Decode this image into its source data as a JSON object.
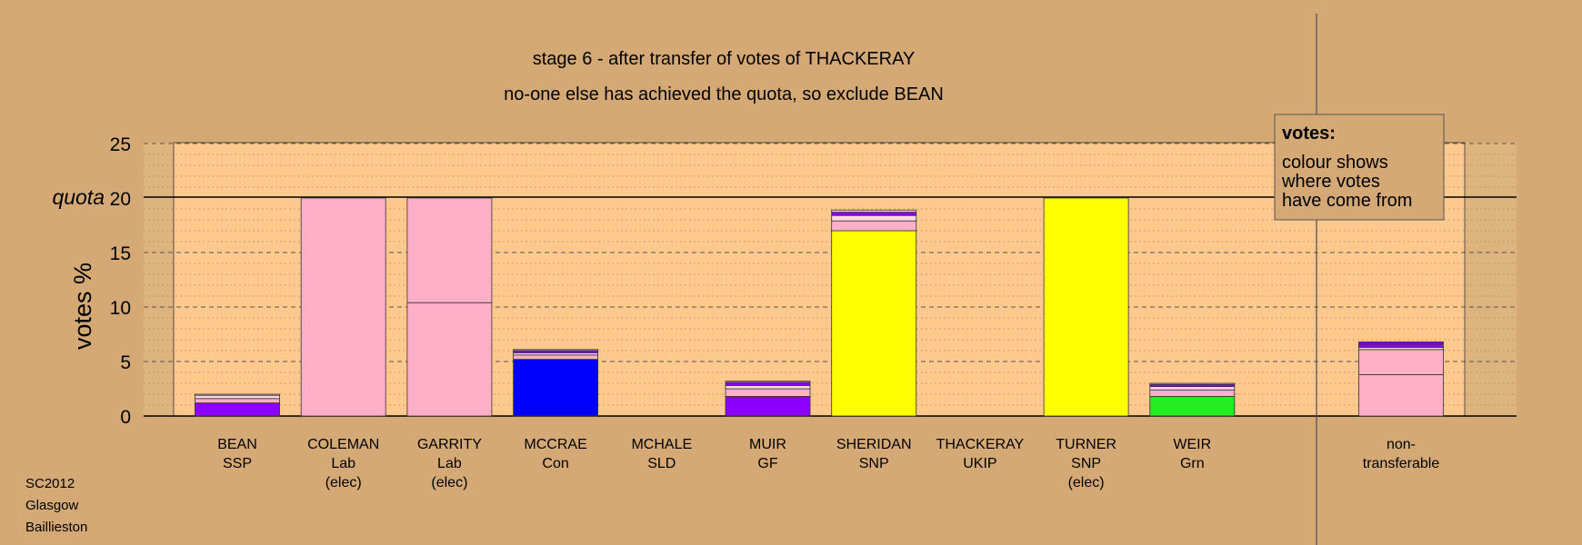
{
  "chart_data": {
    "type": "bar",
    "stacked": true,
    "title": "stage 6 - after transfer of votes of THACKERAY",
    "subtitle": "no-one else has achieved the quota, so exclude BEAN",
    "ylabel": "votes %",
    "ylim": [
      0,
      25
    ],
    "yticks": [
      0,
      5,
      10,
      15,
      20,
      25
    ],
    "quota": 20,
    "quota_label": "quota",
    "grid": true,
    "legend": {
      "position": "top-right",
      "title": "votes:",
      "lines": [
        "colour shows",
        "where votes",
        "have come from"
      ]
    },
    "candidates": [
      {
        "name": "BEAN",
        "party": "SSP",
        "status": "",
        "segments": [
          {
            "value": 1.2,
            "color": "#8B00FF"
          },
          {
            "value": 0.4,
            "color": "#FFB0C8"
          },
          {
            "value": 0.3,
            "color": "#FFD8E4"
          },
          {
            "value": 0.1,
            "color": "#FFC8D8"
          }
        ]
      },
      {
        "name": "COLEMAN",
        "party": "Lab",
        "status": "(elec)",
        "segments": [
          {
            "value": 20.0,
            "color": "#FFB0C8"
          }
        ]
      },
      {
        "name": "GARRITY",
        "party": "Lab",
        "status": "(elec)",
        "segments": [
          {
            "value": 10.4,
            "color": "#FFB0C8"
          },
          {
            "value": 9.6,
            "color": "#FFB0C8"
          }
        ]
      },
      {
        "name": "MCCRAE",
        "party": "Con",
        "status": "",
        "segments": [
          {
            "value": 5.2,
            "color": "#0000FF"
          },
          {
            "value": 0.4,
            "color": "#FFB0C8"
          },
          {
            "value": 0.2,
            "color": "#FFD8E4"
          },
          {
            "value": 0.2,
            "color": "#8B00FF"
          },
          {
            "value": 0.1,
            "color": "#FFC8D8"
          }
        ]
      },
      {
        "name": "MCHALE",
        "party": "SLD",
        "status": "",
        "segments": []
      },
      {
        "name": "MUIR",
        "party": "GF",
        "status": "",
        "segments": [
          {
            "value": 1.8,
            "color": "#8B00FF"
          },
          {
            "value": 0.7,
            "color": "#FFB0C8"
          },
          {
            "value": 0.3,
            "color": "#FFD8E4"
          },
          {
            "value": 0.3,
            "color": "#8B00FF"
          },
          {
            "value": 0.1,
            "color": "#FFC8D8"
          }
        ]
      },
      {
        "name": "SHERIDAN",
        "party": "SNP",
        "status": "",
        "segments": [
          {
            "value": 17.0,
            "color": "#FFFF00"
          },
          {
            "value": 0.9,
            "color": "#FFB0C8"
          },
          {
            "value": 0.5,
            "color": "#FFD8E4"
          },
          {
            "value": 0.3,
            "color": "#8B00FF"
          },
          {
            "value": 0.2,
            "color": "#FFC8D8"
          }
        ]
      },
      {
        "name": "THACKERAY",
        "party": "UKIP",
        "status": "",
        "segments": []
      },
      {
        "name": "TURNER",
        "party": "SNP",
        "status": "(elec)",
        "segments": [
          {
            "value": 20.0,
            "color": "#FFFF00"
          }
        ]
      },
      {
        "name": "WEIR",
        "party": "Grn",
        "status": "",
        "segments": [
          {
            "value": 1.8,
            "color": "#22EE22"
          },
          {
            "value": 0.6,
            "color": "#FFB0C8"
          },
          {
            "value": 0.3,
            "color": "#FFD8E4"
          },
          {
            "value": 0.2,
            "color": "#8B00FF"
          },
          {
            "value": 0.1,
            "color": "#FFC8D8"
          }
        ]
      }
    ],
    "non_transferable": {
      "label_lines": [
        "non-",
        "transferable"
      ],
      "segments": [
        {
          "value": 3.8,
          "color": "#FFB0C8"
        },
        {
          "value": 2.3,
          "color": "#FFB0C8"
        },
        {
          "value": 0.2,
          "color": "#FFD8E4"
        },
        {
          "value": 0.3,
          "color": "#8B00FF"
        },
        {
          "value": 0.2,
          "color": "#8B00FF"
        }
      ]
    },
    "colors": {
      "background": "#D4A976",
      "plot_area": "#FFC88C",
      "plot_margin": "#DEB47E"
    }
  },
  "footer": {
    "lines": [
      "SC2012",
      "Glasgow",
      "Baillieston"
    ]
  }
}
